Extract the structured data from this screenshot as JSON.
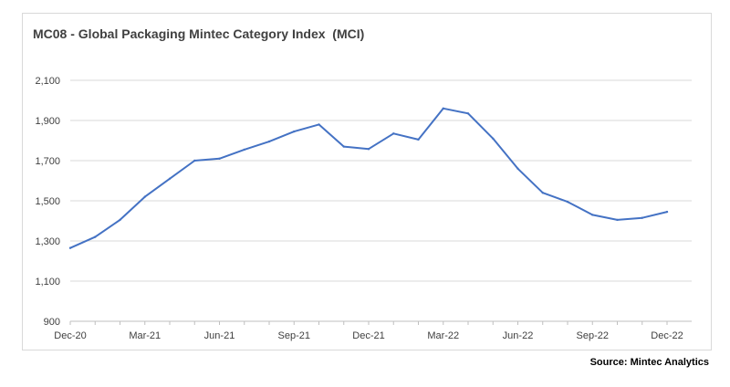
{
  "chart_data": {
    "type": "line",
    "title": "MC08 - Global Packaging Mintec Category Index  (MCI)",
    "xlabel": "",
    "ylabel": "",
    "ylim": [
      900,
      2100
    ],
    "yticks": [
      "900",
      "1,100",
      "1,300",
      "1,500",
      "1,700",
      "1,900",
      "2,100"
    ],
    "ytick_values": [
      900,
      1100,
      1300,
      1500,
      1700,
      1900,
      2100
    ],
    "x": [
      "Dec-20",
      "Jan-21",
      "Feb-21",
      "Mar-21",
      "Apr-21",
      "May-21",
      "Jun-21",
      "Jul-21",
      "Aug-21",
      "Sep-21",
      "Oct-21",
      "Nov-21",
      "Dec-21",
      "Jan-22",
      "Feb-22",
      "Mar-22",
      "Apr-22",
      "May-22",
      "Jun-22",
      "Jul-22",
      "Aug-22",
      "Sep-22",
      "Oct-22",
      "Nov-22",
      "Dec-22"
    ],
    "xtick_labels": [
      "Dec-20",
      "Mar-21",
      "Jun-21",
      "Sep-21",
      "Dec-21",
      "Mar-22",
      "Jun-22",
      "Sep-22",
      "Dec-22"
    ],
    "series": [
      {
        "name": "",
        "color": "#4472c4",
        "values": [
          1265,
          1320,
          1405,
          1520,
          1610,
          1700,
          1710,
          1755,
          1795,
          1845,
          1880,
          1770,
          1758,
          1835,
          1805,
          1960,
          1935,
          1810,
          1660,
          1540,
          1495,
          1430,
          1405,
          1415,
          1445
        ]
      }
    ],
    "grid": true,
    "legend": "none",
    "source": "Source: Mintec Analytics"
  }
}
